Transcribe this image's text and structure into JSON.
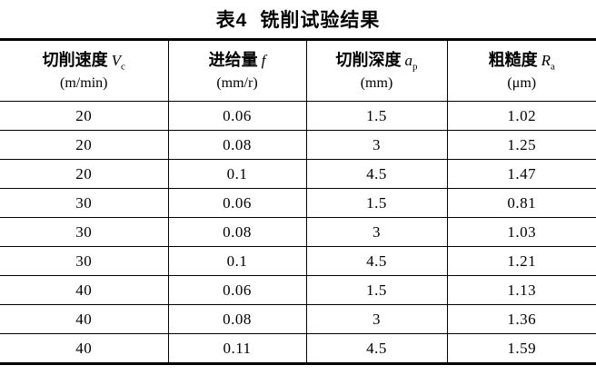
{
  "title": {
    "prefix": "表4",
    "text": "铣削试验结果"
  },
  "table": {
    "headers": [
      {
        "label": "切削速度",
        "symbol": "V",
        "subscript": "c",
        "unit": "(m/min)"
      },
      {
        "label": "进给量",
        "symbol": "f",
        "subscript": "",
        "unit": "(mm/r)"
      },
      {
        "label": "切削深度",
        "symbol": "a",
        "subscript": "p",
        "unit": "(mm)"
      },
      {
        "label": "粗糙度",
        "symbol": "R",
        "subscript": "a",
        "unit": "(μm)"
      }
    ],
    "rows": [
      [
        "20",
        "0.06",
        "1.5",
        "1.02"
      ],
      [
        "20",
        "0.08",
        "3",
        "1.25"
      ],
      [
        "20",
        "0.1",
        "4.5",
        "1.47"
      ],
      [
        "30",
        "0.06",
        "1.5",
        "0.81"
      ],
      [
        "30",
        "0.08",
        "3",
        "1.03"
      ],
      [
        "30",
        "0.1",
        "4.5",
        "1.21"
      ],
      [
        "40",
        "0.06",
        "1.5",
        "1.13"
      ],
      [
        "40",
        "0.08",
        "3",
        "1.36"
      ],
      [
        "40",
        "0.11",
        "4.5",
        "1.59"
      ]
    ]
  }
}
